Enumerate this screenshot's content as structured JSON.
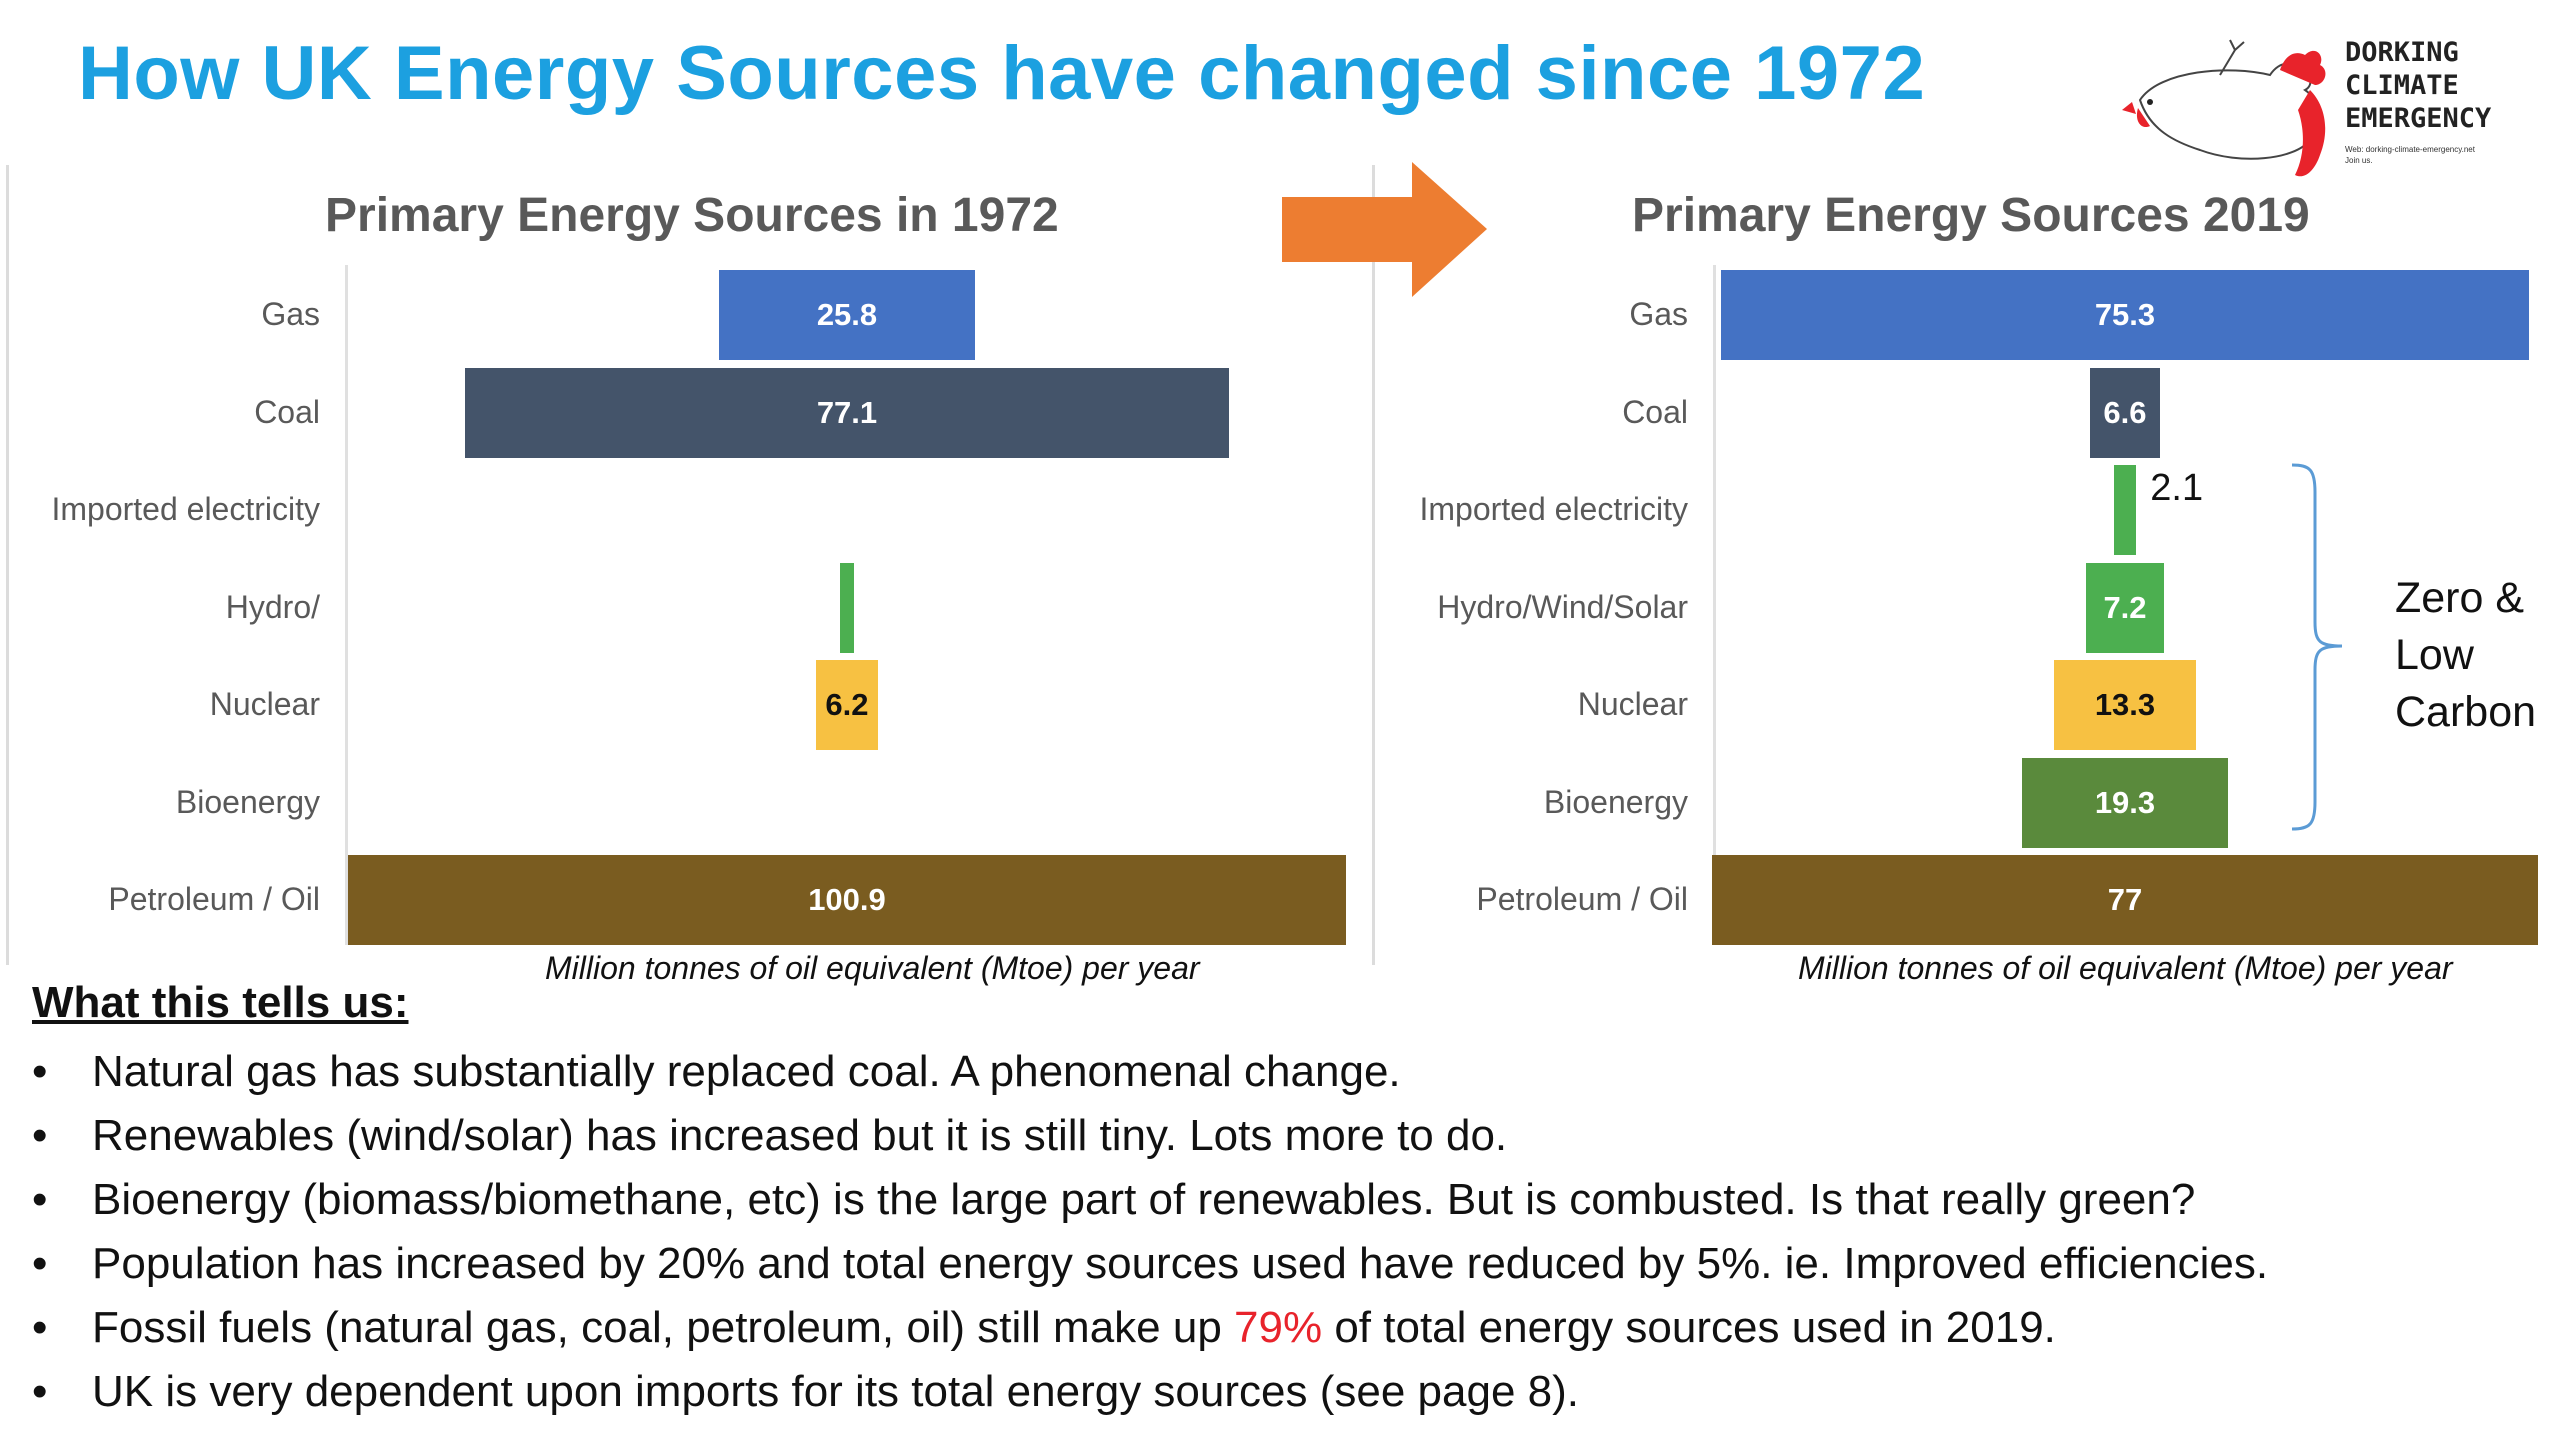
{
  "page": {
    "title": "How UK Energy Sources have changed since 1972",
    "logo": {
      "line1": "DORKING",
      "line2": "CLIMATE",
      "line3": "EMERGENCY",
      "small1": "Web: dorking-climate-emergency.net",
      "small2": "Join us."
    }
  },
  "colors": {
    "title": "#1ca0e0",
    "gas": "#4472c4",
    "coal": "#44546a",
    "electricity": "#4caf50",
    "hydro": "#4caf50",
    "nuclear": "#f7c142",
    "bioenergy": "#5a8a3c",
    "oil": "#7a5c20",
    "arrow": "#ed7d31",
    "highlight": "#e8232b"
  },
  "chart_data": [
    {
      "type": "bar",
      "orientation": "horizontal-centered",
      "title": "Primary Energy Sources in 1972",
      "xlabel": "Million tonnes of oil equivalent (Mtoe) per year",
      "categories": [
        "Gas",
        "Coal",
        "Imported electricity",
        "Hydro/",
        "Nuclear",
        "Bioenergy",
        "Petroleum / Oil"
      ],
      "values": [
        25.8,
        77.1,
        0,
        0.5,
        6.2,
        0,
        100.9
      ],
      "data_labels": [
        "25.8",
        "77.1",
        "",
        "",
        "6.2",
        "",
        "100.9"
      ],
      "colors": [
        "#4472c4",
        "#44546a",
        "#4caf50",
        "#4caf50",
        "#f7c142",
        "#5a8a3c",
        "#7a5c20"
      ],
      "label_colors": [
        "#ffffff",
        "#ffffff",
        "#111111",
        "#111111",
        "#111111",
        "#ffffff",
        "#ffffff"
      ]
    },
    {
      "type": "bar",
      "orientation": "horizontal-centered",
      "title": "Primary Energy Sources 2019",
      "xlabel": "Million tonnes of oil equivalent (Mtoe) per year",
      "categories": [
        "Gas",
        "Coal",
        "Imported electricity",
        "Hydro/Wind/Solar",
        "Nuclear",
        "Bioenergy",
        "Petroleum / Oil"
      ],
      "values": [
        75.3,
        6.6,
        2.1,
        7.2,
        13.3,
        19.3,
        77
      ],
      "data_labels": [
        "75.3",
        "6.6",
        "2.1",
        "7.2",
        "13.3",
        "19.3",
        "77"
      ],
      "colors": [
        "#4472c4",
        "#44546a",
        "#4caf50",
        "#4caf50",
        "#f7c142",
        "#5a8a3c",
        "#7a5c20"
      ],
      "label_colors": [
        "#ffffff",
        "#ffffff",
        "#111111",
        "#ffffff",
        "#111111",
        "#ffffff",
        "#ffffff"
      ],
      "annotation": [
        "Zero &",
        "Low",
        "Carbon"
      ]
    }
  ],
  "notes": {
    "heading": "What this tells us:",
    "bullet": "•",
    "items": [
      "Natural gas has substantially replaced coal. A phenomenal change.",
      "Renewables (wind/solar) has increased but it is still tiny. Lots more to do.",
      "Bioenergy (biomass/biomethane, etc) is the large part of renewables.  But is combusted. Is that really green?",
      "Population has increased by 20% and total energy sources used have reduced by 5%. ie. Improved efficiencies."
    ],
    "item5": {
      "before": "Fossil fuels (natural gas, coal, petroleum, oil) still make up ",
      "highlight": "79%",
      "after": " of total energy sources used in 2019."
    },
    "item6": "UK is very dependent upon imports for its total energy sources (see page 8)."
  }
}
